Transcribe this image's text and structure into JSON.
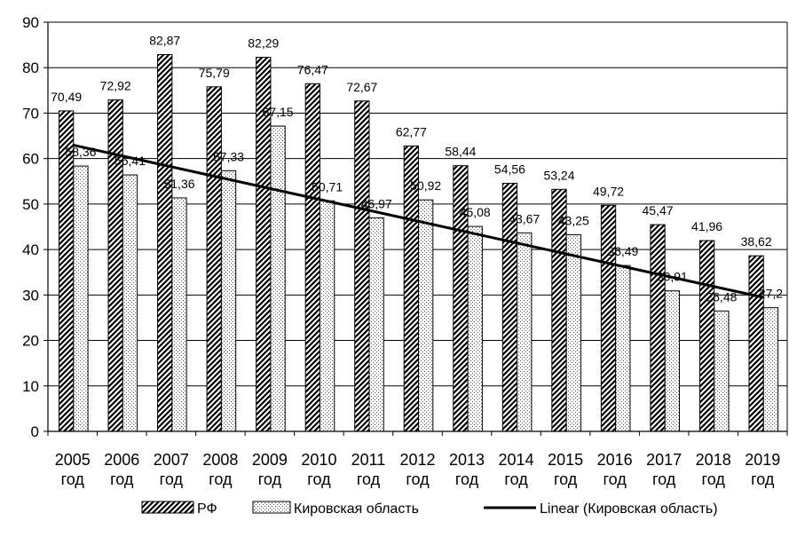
{
  "chart_data": {
    "type": "bar",
    "title": "",
    "xlabel": "",
    "ylabel": "",
    "ylim": [
      0,
      90
    ],
    "yticks": [
      "0",
      "10",
      "20",
      "30",
      "40",
      "50",
      "60",
      "70",
      "80",
      "90"
    ],
    "grid": true,
    "legend_position": "bottom",
    "categories": [
      [
        "2005",
        "год"
      ],
      [
        "2006",
        "год"
      ],
      [
        "2007",
        "год"
      ],
      [
        "2008",
        "год"
      ],
      [
        "2009",
        "год"
      ],
      [
        "2010",
        "год"
      ],
      [
        "2011",
        "год"
      ],
      [
        "2012",
        "год"
      ],
      [
        "2013",
        "год"
      ],
      [
        "2014",
        "год"
      ],
      [
        "2015",
        "год"
      ],
      [
        "2016",
        "год"
      ],
      [
        "2017",
        "год"
      ],
      [
        "2018",
        "год"
      ],
      [
        "2019",
        "год"
      ]
    ],
    "series": [
      {
        "name": "РФ",
        "pattern": "diagonal-hatch",
        "values": [
          70.49,
          72.92,
          82.87,
          75.79,
          82.29,
          76.47,
          72.67,
          62.77,
          58.44,
          54.56,
          53.24,
          49.72,
          45.47,
          41.96,
          38.62
        ],
        "labels": [
          "70,49",
          "72,92",
          "82,87",
          "75,79",
          "82,29",
          "76,47",
          "72,67",
          "62,77",
          "58,44",
          "54,56",
          "53,24",
          "49,72",
          "45,47",
          "41,96",
          "38,62"
        ]
      },
      {
        "name": "Кировская область",
        "pattern": "dotted",
        "values": [
          58.36,
          56.41,
          51.36,
          57.33,
          67.15,
          50.71,
          46.97,
          50.92,
          45.08,
          43.67,
          43.25,
          36.49,
          30.91,
          26.48,
          27.2
        ],
        "labels": [
          "58,36",
          "56,41",
          "51,36",
          "57,33",
          "67,15",
          "50,71",
          "46,97",
          "50,92",
          "45,08",
          "43,67",
          "43,25",
          "36,49",
          "30,91",
          "26,48",
          "27,2"
        ]
      }
    ],
    "trendline": {
      "name": "Linear (Кировская область)",
      "series_index": 1,
      "start_value": 63.0,
      "end_value": 29.5
    }
  },
  "colors": {
    "bar_stroke": "#000000",
    "hatch": "#000000",
    "dots": "#555555",
    "grid": "#000000",
    "trend": "#000000",
    "text": "#000000"
  }
}
